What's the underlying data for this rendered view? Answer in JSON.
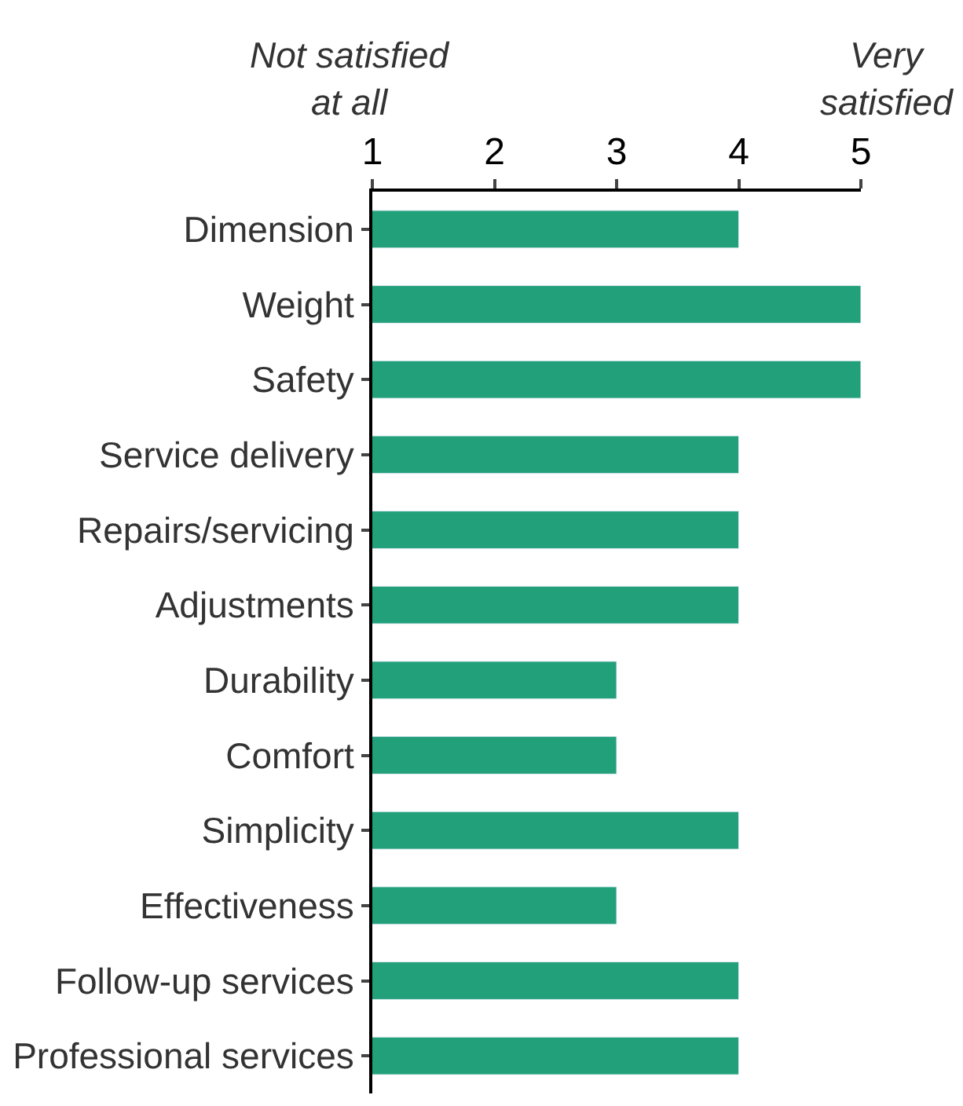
{
  "chart_data": {
    "type": "bar",
    "orientation": "horizontal",
    "categories": [
      "Dimension",
      "Weight",
      "Safety",
      "Service delivery",
      "Repairs/servicing",
      "Adjustments",
      "Durability",
      "Comfort",
      "Simplicity",
      "Effectiveness",
      "Follow-up services",
      "Professional services"
    ],
    "values": [
      4,
      5,
      5,
      4,
      4,
      4,
      3,
      3,
      4,
      3,
      4,
      4
    ],
    "color": "#22a07a",
    "xlim": [
      1,
      5
    ],
    "xticks": [
      1,
      2,
      3,
      4,
      5
    ],
    "annotations": [
      "Not satisfied\nat all",
      "Very\nsatisfied"
    ]
  }
}
